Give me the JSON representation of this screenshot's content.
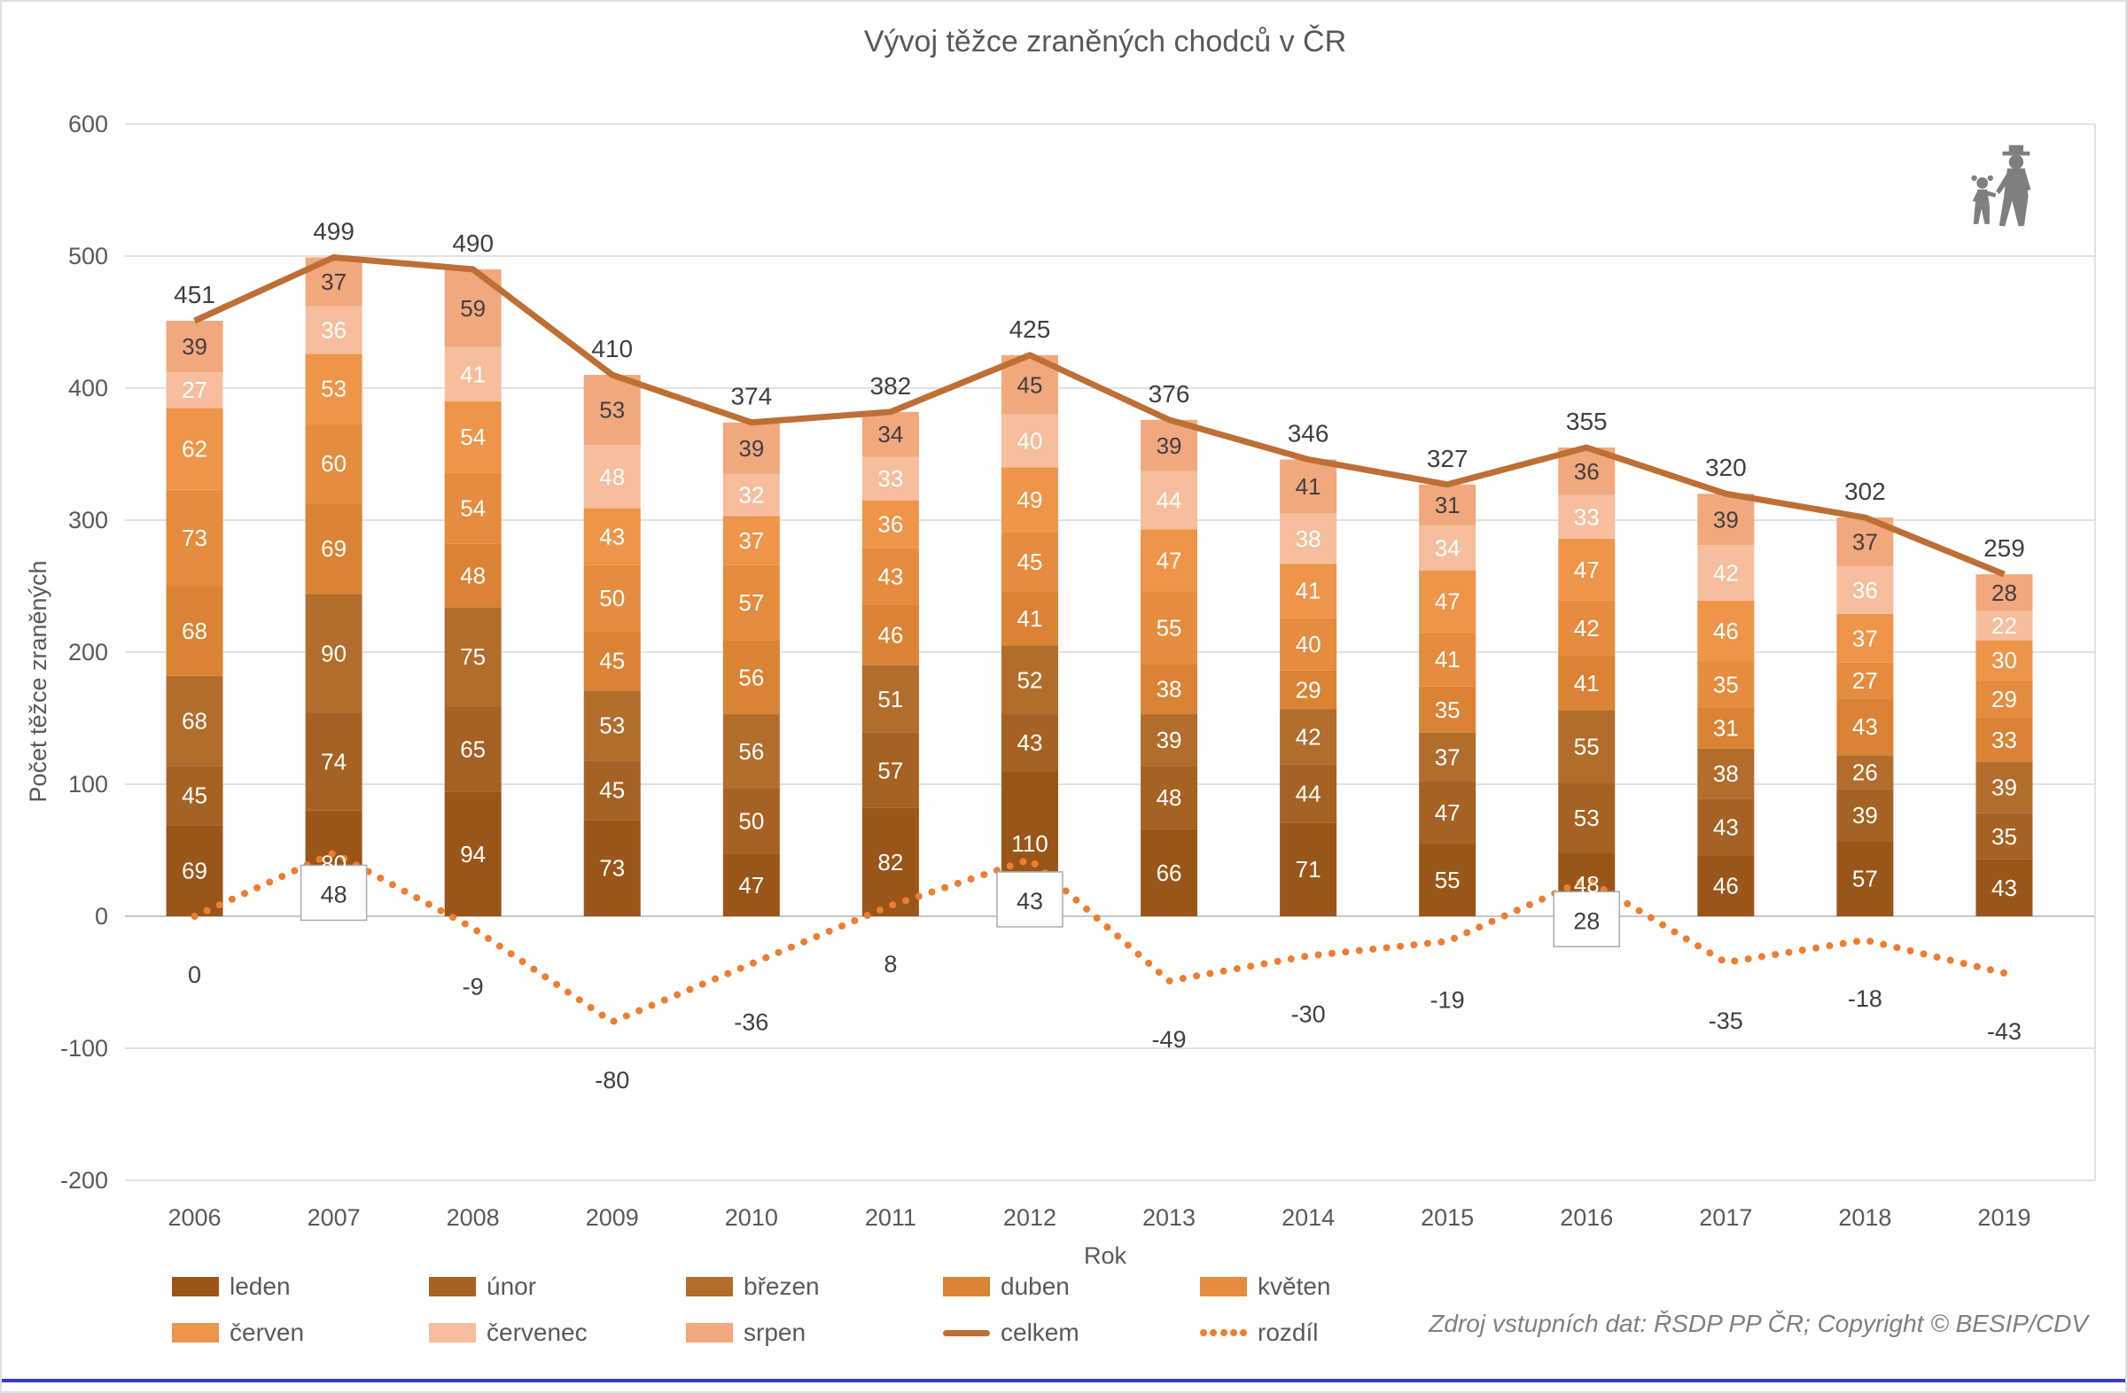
{
  "source_note": "Zdroj vstupních dat: ŘSDP PP ČR; Copyright © BESIP/CDV",
  "accent_colors": {
    "gridline": "#d9d9d9",
    "zero_axis": "#c7c7c7",
    "tick_text": "#595959",
    "value_text": "#404040",
    "segment_text": "#ffffff",
    "bottom_border": "#3939cf",
    "icon_gray": "#7f7f7f"
  },
  "chart_data": {
    "type": "bar",
    "stacked": true,
    "title": "Vývoj těžce zraněných chodců v ČR",
    "xlabel": "Rok",
    "ylabel": "Počet těžce zraněných",
    "ylim": [
      -200,
      600
    ],
    "ytick_step": 100,
    "yticks": [
      600,
      500,
      400,
      300,
      200,
      100,
      0,
      -100,
      -200
    ],
    "grid": true,
    "legend_position": "bottom",
    "categories": [
      "2006",
      "2007",
      "2008",
      "2009",
      "2010",
      "2011",
      "2012",
      "2013",
      "2014",
      "2015",
      "2016",
      "2017",
      "2018",
      "2019"
    ],
    "series": [
      {
        "name": "leden",
        "color": "#9a5619",
        "values": [
          69,
          80,
          94,
          73,
          47,
          82,
          110,
          66,
          71,
          55,
          48,
          46,
          57,
          43
        ]
      },
      {
        "name": "únor",
        "color": "#a66223",
        "values": [
          45,
          74,
          65,
          45,
          50,
          57,
          43,
          48,
          44,
          47,
          53,
          43,
          39,
          35
        ]
      },
      {
        "name": "březen",
        "color": "#b26d2d",
        "values": [
          68,
          90,
          75,
          53,
          56,
          51,
          52,
          39,
          42,
          37,
          55,
          38,
          26,
          39
        ]
      },
      {
        "name": "duben",
        "color": "#da8334",
        "values": [
          68,
          69,
          48,
          45,
          56,
          46,
          41,
          38,
          29,
          35,
          41,
          31,
          43,
          33
        ]
      },
      {
        "name": "květen",
        "color": "#e58c3f",
        "values": [
          73,
          60,
          54,
          50,
          57,
          43,
          45,
          55,
          40,
          41,
          42,
          35,
          27,
          29
        ]
      },
      {
        "name": "červen",
        "color": "#ee954a",
        "values": [
          62,
          53,
          54,
          43,
          37,
          36,
          49,
          47,
          41,
          47,
          47,
          46,
          37,
          30
        ]
      },
      {
        "name": "červenec",
        "color": "#f6be9c",
        "values": [
          27,
          36,
          41,
          48,
          32,
          33,
          40,
          44,
          38,
          34,
          33,
          42,
          36,
          22
        ]
      },
      {
        "name": "srpen",
        "color": "#f2a87d",
        "values": [
          39,
          37,
          59,
          53,
          39,
          34,
          45,
          39,
          41,
          31,
          36,
          39,
          37,
          28
        ]
      }
    ],
    "line_series": {
      "name": "celkem",
      "color": "#be6f35",
      "values": [
        451,
        499,
        490,
        410,
        374,
        382,
        425,
        376,
        346,
        327,
        355,
        320,
        302,
        259
      ]
    },
    "diff_series": {
      "name": "rozdíl",
      "color": "#ed7d31",
      "values": [
        0,
        48,
        -9,
        -80,
        -36,
        8,
        43,
        -49,
        -30,
        -19,
        28,
        -35,
        -18,
        -43
      ],
      "boxed": [
        false,
        true,
        false,
        false,
        false,
        false,
        true,
        false,
        false,
        false,
        true,
        false,
        false,
        false
      ]
    }
  }
}
